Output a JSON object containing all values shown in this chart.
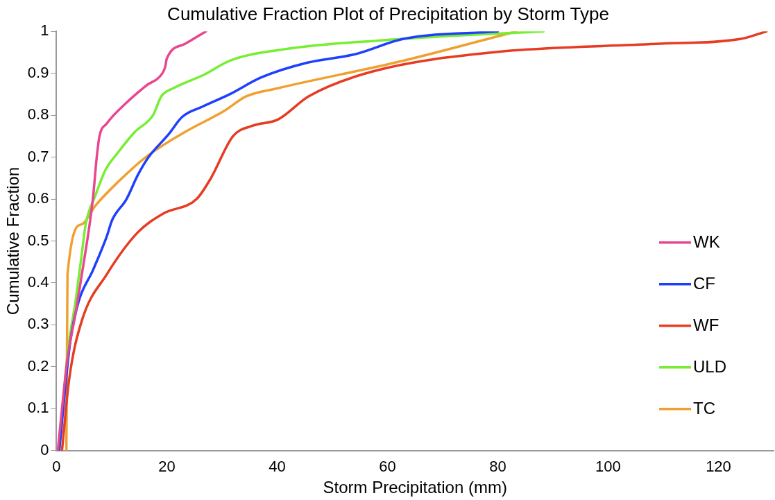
{
  "chart_data": {
    "type": "line",
    "title": "Cumulative Fraction Plot of Precipitation by Storm Type",
    "xlabel": "Storm Precipitation (mm)",
    "ylabel": "Cumulative Fraction",
    "xlim": [
      0,
      130
    ],
    "xticks": [
      0,
      20,
      40,
      60,
      80,
      100,
      120
    ],
    "ylim": [
      0,
      1
    ],
    "yticks": [
      0,
      0.1,
      0.2,
      0.3,
      0.4,
      0.5,
      0.6,
      0.7,
      0.8,
      0.9,
      1
    ],
    "grid": false,
    "legend": "bottom right",
    "marker": "none",
    "series": [
      {
        "name": "WK",
        "color": "#e8468f",
        "x": [
          0.25,
          1,
          2,
          3.5,
          4.6,
          6.6,
          7.3,
          7.8,
          9.1,
          12.7,
          16.2,
          19.2,
          19.7,
          20,
          23.3,
          27.1
        ],
        "values": [
          0,
          0.1,
          0.22,
          0.33,
          0.42,
          0.6,
          0.7,
          0.75,
          0.78,
          0.83,
          0.87,
          0.9,
          0.915,
          0.935,
          0.97,
          1
        ]
      },
      {
        "name": "CF",
        "color": "#1f3fff",
        "x": [
          0.5,
          2.5,
          4,
          6.6,
          9.1,
          10.1,
          12.7,
          14.7,
          16.7,
          20.3,
          22.8,
          26.4,
          31.4,
          37.1,
          45.4,
          54.3,
          62.9,
          80
        ],
        "values": [
          0,
          0.26,
          0.355,
          0.43,
          0.51,
          0.55,
          0.6,
          0.656,
          0.7,
          0.754,
          0.796,
          0.82,
          0.85,
          0.89,
          0.925,
          0.946,
          0.982,
          1
        ]
      },
      {
        "name": "WF",
        "color": "#e63c22",
        "x": [
          1,
          2.3,
          4.6,
          9.1,
          14.7,
          19.3,
          25.4,
          28,
          32,
          35.6,
          40.2,
          45.7,
          57.2,
          80,
          108.6,
          124.1,
          128.7
        ],
        "values": [
          0,
          0.17,
          0.31,
          0.42,
          0.52,
          0.565,
          0.6,
          0.65,
          0.75,
          0.775,
          0.79,
          0.845,
          0.904,
          0.951,
          0.97,
          0.982,
          1
        ]
      },
      {
        "name": "ULD",
        "color": "#77ee33",
        "x": [
          0.5,
          2,
          3.5,
          4.6,
          5.3,
          7.1,
          8.9,
          11.1,
          14.2,
          17.5,
          19,
          21.3,
          26.8,
          31.4,
          40,
          62.9,
          88.3
        ],
        "values": [
          0,
          0.23,
          0.36,
          0.47,
          0.54,
          0.61,
          0.67,
          0.71,
          0.76,
          0.8,
          0.845,
          0.865,
          0.897,
          0.93,
          0.955,
          0.982,
          1
        ]
      },
      {
        "name": "TC",
        "color": "#f0a030",
        "x": [
          1.8,
          2,
          4.6,
          7.1,
          11.1,
          16.2,
          23.3,
          30.4,
          34.4,
          40,
          62.9,
          83.4
        ],
        "values": [
          0,
          0.42,
          0.54,
          0.585,
          0.64,
          0.7,
          0.76,
          0.81,
          0.845,
          0.864,
          0.93,
          1
        ]
      }
    ]
  }
}
